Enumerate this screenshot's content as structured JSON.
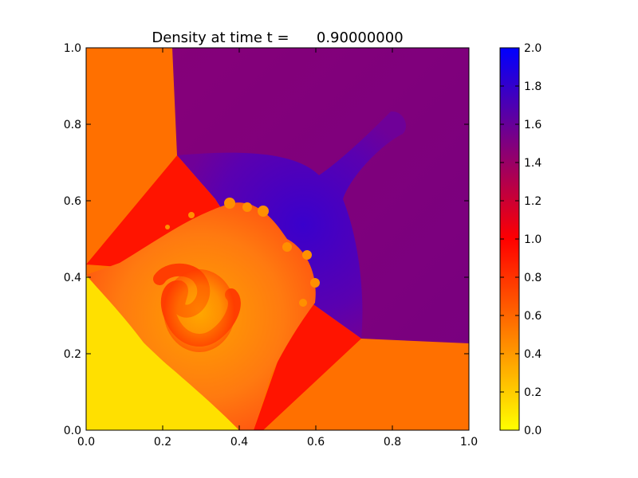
{
  "chart_data": {
    "type": "heatmap",
    "title": "Density at time t =      0.90000000",
    "xlabel": "",
    "ylabel": "",
    "xlim": [
      0.0,
      1.0
    ],
    "ylim": [
      0.0,
      1.0
    ],
    "x_ticks": [
      "0.0",
      "0.2",
      "0.4",
      "0.6",
      "0.8",
      "1.0"
    ],
    "y_ticks": [
      "0.0",
      "0.2",
      "0.4",
      "0.6",
      "0.8",
      "1.0"
    ],
    "colorbar": {
      "range": [
        0.0,
        2.0
      ],
      "ticks": [
        "0.0",
        "0.2",
        "0.4",
        "0.6",
        "0.8",
        "1.0",
        "1.2",
        "1.4",
        "1.6",
        "1.8",
        "2.0"
      ],
      "colormap": [
        "#ffff00",
        "#ff0000",
        "#0000ff"
      ],
      "position": "right"
    },
    "regions": [
      {
        "name": "upper-left",
        "density": 0.5,
        "color": "#ff7000"
      },
      {
        "name": "upper-right",
        "density": 1.45,
        "color": "#7f007f"
      },
      {
        "name": "lower-left",
        "density": 0.12,
        "color": "#ffe000"
      },
      {
        "name": "lower-right",
        "density": 0.5,
        "color": "#ff7000"
      },
      {
        "name": "dense-jet",
        "density": 1.7,
        "color": "#4a00c0"
      },
      {
        "name": "shocked-left",
        "density": 0.95,
        "color": "#ff1400"
      },
      {
        "name": "shocked-bottom",
        "density": 0.95,
        "color": "#ff1400"
      }
    ],
    "grid": false
  }
}
